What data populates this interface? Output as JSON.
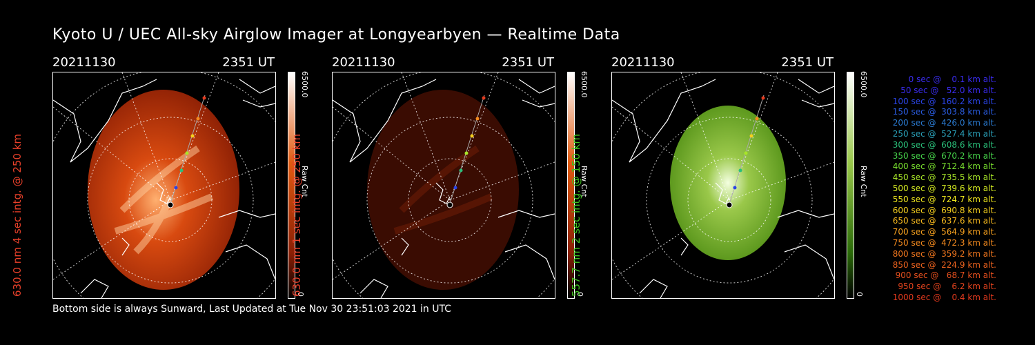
{
  "title": "Kyoto U / UEC All-sky Airglow Imager at Longyearbyen — Realtime Data",
  "footer": "Bottom side is always Sunward, Last Updated at Tue Nov 30 23:51:03 2021 in UTC",
  "panels": [
    {
      "date": "20211130",
      "time": "2351 UT",
      "side_label": "630.0 nm 4 sec intg. @ 250 km",
      "side_color": "#e8402a",
      "cbar_max": "6500.0",
      "cbar_unit": "Raw Cnt",
      "cbar_min": "0"
    },
    {
      "date": "20211130",
      "time": "2351 UT",
      "side_label": "630.0 nm 1 sec intg. @ 250 km",
      "side_color": "#e8402a",
      "cbar_max": "6500.0",
      "cbar_unit": "Raw Cnt",
      "cbar_min": "0"
    },
    {
      "date": "20211130",
      "time": "2351 UT",
      "side_label": "557.7 nm 2 sec intg. @ 150 km",
      "side_color": "#3ec21e",
      "cbar_max": "6500.0",
      "cbar_unit": "Raw Cnt",
      "cbar_min": "0"
    }
  ],
  "legend": [
    {
      "text": "   0 sec @    0.1 km alt.",
      "color": "#3a2cf0"
    },
    {
      "text": "  50 sec @   52.0 km alt.",
      "color": "#3a2cf0"
    },
    {
      "text": " 100 sec @  160.2 km alt.",
      "color": "#2a44e6"
    },
    {
      "text": " 150 sec @  303.8 km alt.",
      "color": "#2a5ce0"
    },
    {
      "text": " 200 sec @  426.0 km alt.",
      "color": "#2a7ad0"
    },
    {
      "text": " 250 sec @  527.4 km alt.",
      "color": "#2aa0b8"
    },
    {
      "text": " 300 sec @  608.6 km alt.",
      "color": "#2ac07a"
    },
    {
      "text": " 350 sec @  670.2 km alt.",
      "color": "#46d24a"
    },
    {
      "text": " 400 sec @  712.4 km alt.",
      "color": "#78de2e"
    },
    {
      "text": " 450 sec @  735.5 km alt.",
      "color": "#a8e628"
    },
    {
      "text": " 500 sec @  739.6 km alt.",
      "color": "#d6ec22"
    },
    {
      "text": " 550 sec @  724.7 km alt.",
      "color": "#f0e81e"
    },
    {
      "text": " 600 sec @  690.8 km alt.",
      "color": "#f6d01e"
    },
    {
      "text": " 650 sec @  637.6 km alt.",
      "color": "#f6b81e"
    },
    {
      "text": " 700 sec @  564.9 km alt.",
      "color": "#f6a01e"
    },
    {
      "text": " 750 sec @  472.3 km alt.",
      "color": "#f48a1e"
    },
    {
      "text": " 800 sec @  359.2 km alt.",
      "color": "#f0761e"
    },
    {
      "text": " 850 sec @  224.9 km alt.",
      "color": "#ec621e"
    },
    {
      "text": " 900 sec @   68.7 km alt.",
      "color": "#e8501e"
    },
    {
      "text": " 950 sec @    6.2 km alt.",
      "color": "#e6441e"
    },
    {
      "text": "1000 sec @    0.4 km alt.",
      "color": "#e43a1e"
    }
  ],
  "colors": {
    "red_map": "#c83a0a",
    "green_map": "#6a9a1a"
  }
}
